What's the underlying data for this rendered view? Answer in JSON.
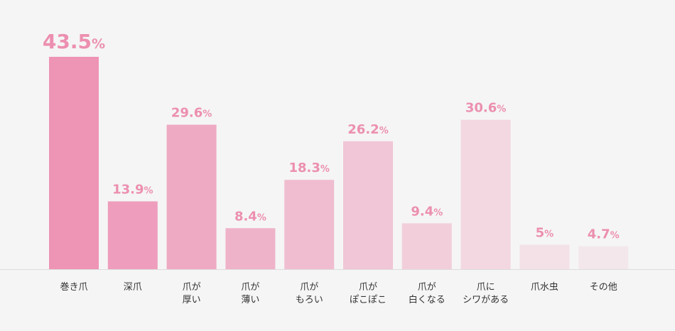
{
  "chart_data": {
    "type": "bar",
    "title": "",
    "xlabel": "",
    "ylabel": "",
    "categories": [
      [
        "巻き爪"
      ],
      [
        "深爪"
      ],
      [
        "爪が",
        "厚い"
      ],
      [
        "爪が",
        "薄い"
      ],
      [
        "爪が",
        "もろい"
      ],
      [
        "爪が",
        "ぽこぽこ"
      ],
      [
        "爪が",
        "白くなる"
      ],
      [
        "爪に",
        "シワがある"
      ],
      [
        "爪水虫"
      ],
      [
        "その他"
      ]
    ],
    "values": [
      43.5,
      13.9,
      29.6,
      8.4,
      18.3,
      26.2,
      9.4,
      30.6,
      5,
      4.7
    ],
    "value_suffix": "%",
    "ylim": [
      0,
      45
    ],
    "grid": false,
    "colors": [
      "#ee94b4",
      "#ee9ebc",
      "#eeaac3",
      "#efb3c9",
      "#f0bdd0",
      "#f1c6d6",
      "#f2cedb",
      "#f3d7e1",
      "#f3e1e7",
      "#f3e7eb"
    ],
    "label_color": "#ec8fb0",
    "axis_color": "#dddddd"
  }
}
